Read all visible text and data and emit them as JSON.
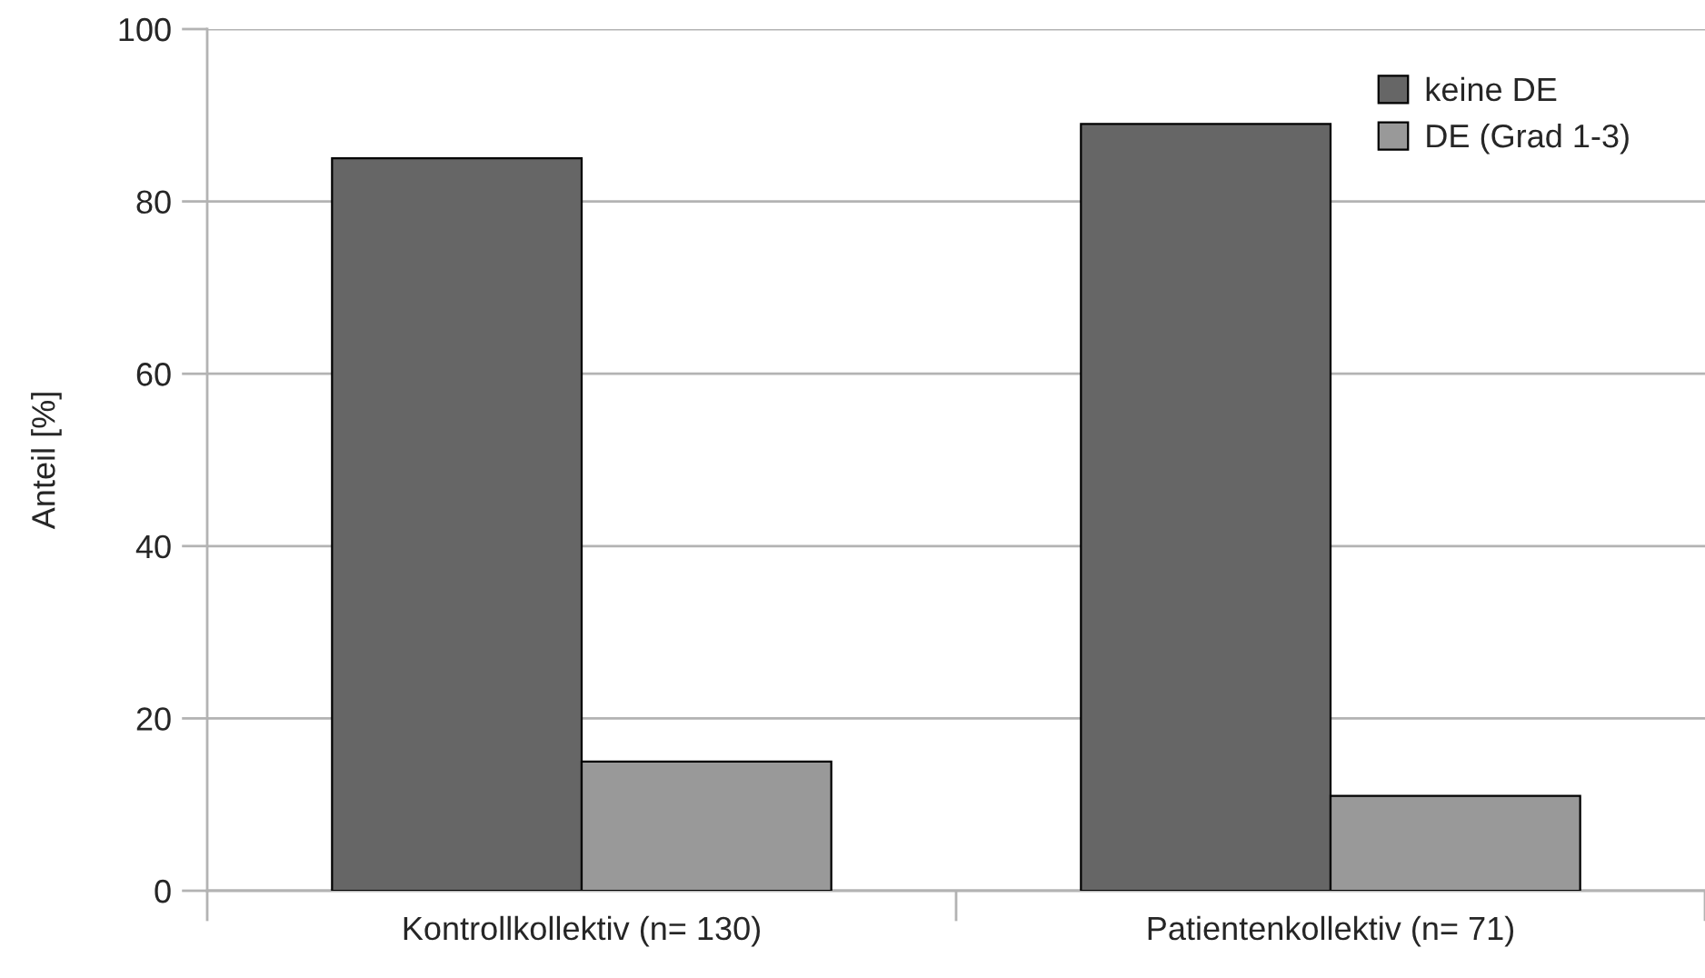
{
  "chart_data": {
    "type": "bar",
    "ylabel": "Anteil [%]",
    "categories": [
      "Kontrollkollektiv (n= 130)",
      "Patientenkollektiv (n= 71)"
    ],
    "series": [
      {
        "name": "keine DE",
        "color": "#666666",
        "values": [
          85,
          89
        ]
      },
      {
        "name": "DE (Grad 1-3)",
        "color": "#999999",
        "values": [
          15,
          11
        ]
      }
    ],
    "ylim": [
      0,
      100
    ],
    "yticks": [
      0,
      20,
      40,
      60,
      80,
      100
    ],
    "grid": "y",
    "legend": "top right"
  }
}
